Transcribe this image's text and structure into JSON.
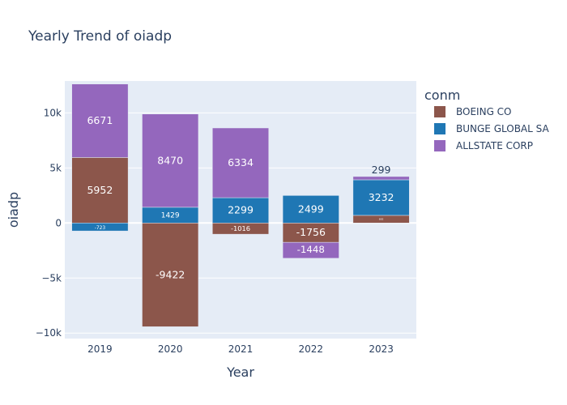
{
  "chart_data": {
    "type": "bar",
    "barmode": "relative",
    "title": "Yearly Trend of oiadp",
    "xlabel": "Year",
    "ylabel": "oiadp",
    "categories": [
      "2019",
      "2020",
      "2021",
      "2022",
      "2023"
    ],
    "ylim": [
      -10500,
      12900
    ],
    "y_ticks": [
      -10000,
      -5000,
      0,
      5000,
      10000
    ],
    "y_tick_labels": [
      "−10k",
      "−5k",
      "0",
      "5k",
      "10k"
    ],
    "legend": {
      "title": "conm",
      "placement": "right"
    },
    "series": [
      {
        "name": "BOEING CO",
        "color": "#8c564b",
        "values": [
          5952,
          -9422,
          -1016,
          -1756,
          692
        ],
        "labels": [
          "5952",
          "-9422",
          "-1016",
          "-1756",
          "692"
        ]
      },
      {
        "name": "BUNGE GLOBAL SA",
        "color": "#1f77b4",
        "values": [
          -723,
          1429,
          2299,
          2499,
          3232
        ],
        "labels": [
          "-723",
          "1429",
          "2299",
          "2499",
          "3232"
        ]
      },
      {
        "name": "ALLSTATE CORP",
        "color": "#9467bd",
        "values": [
          6671,
          8470,
          6334,
          -1448,
          299
        ],
        "labels": [
          "6671",
          "8470",
          "6334",
          "-1448",
          "299"
        ]
      }
    ]
  }
}
